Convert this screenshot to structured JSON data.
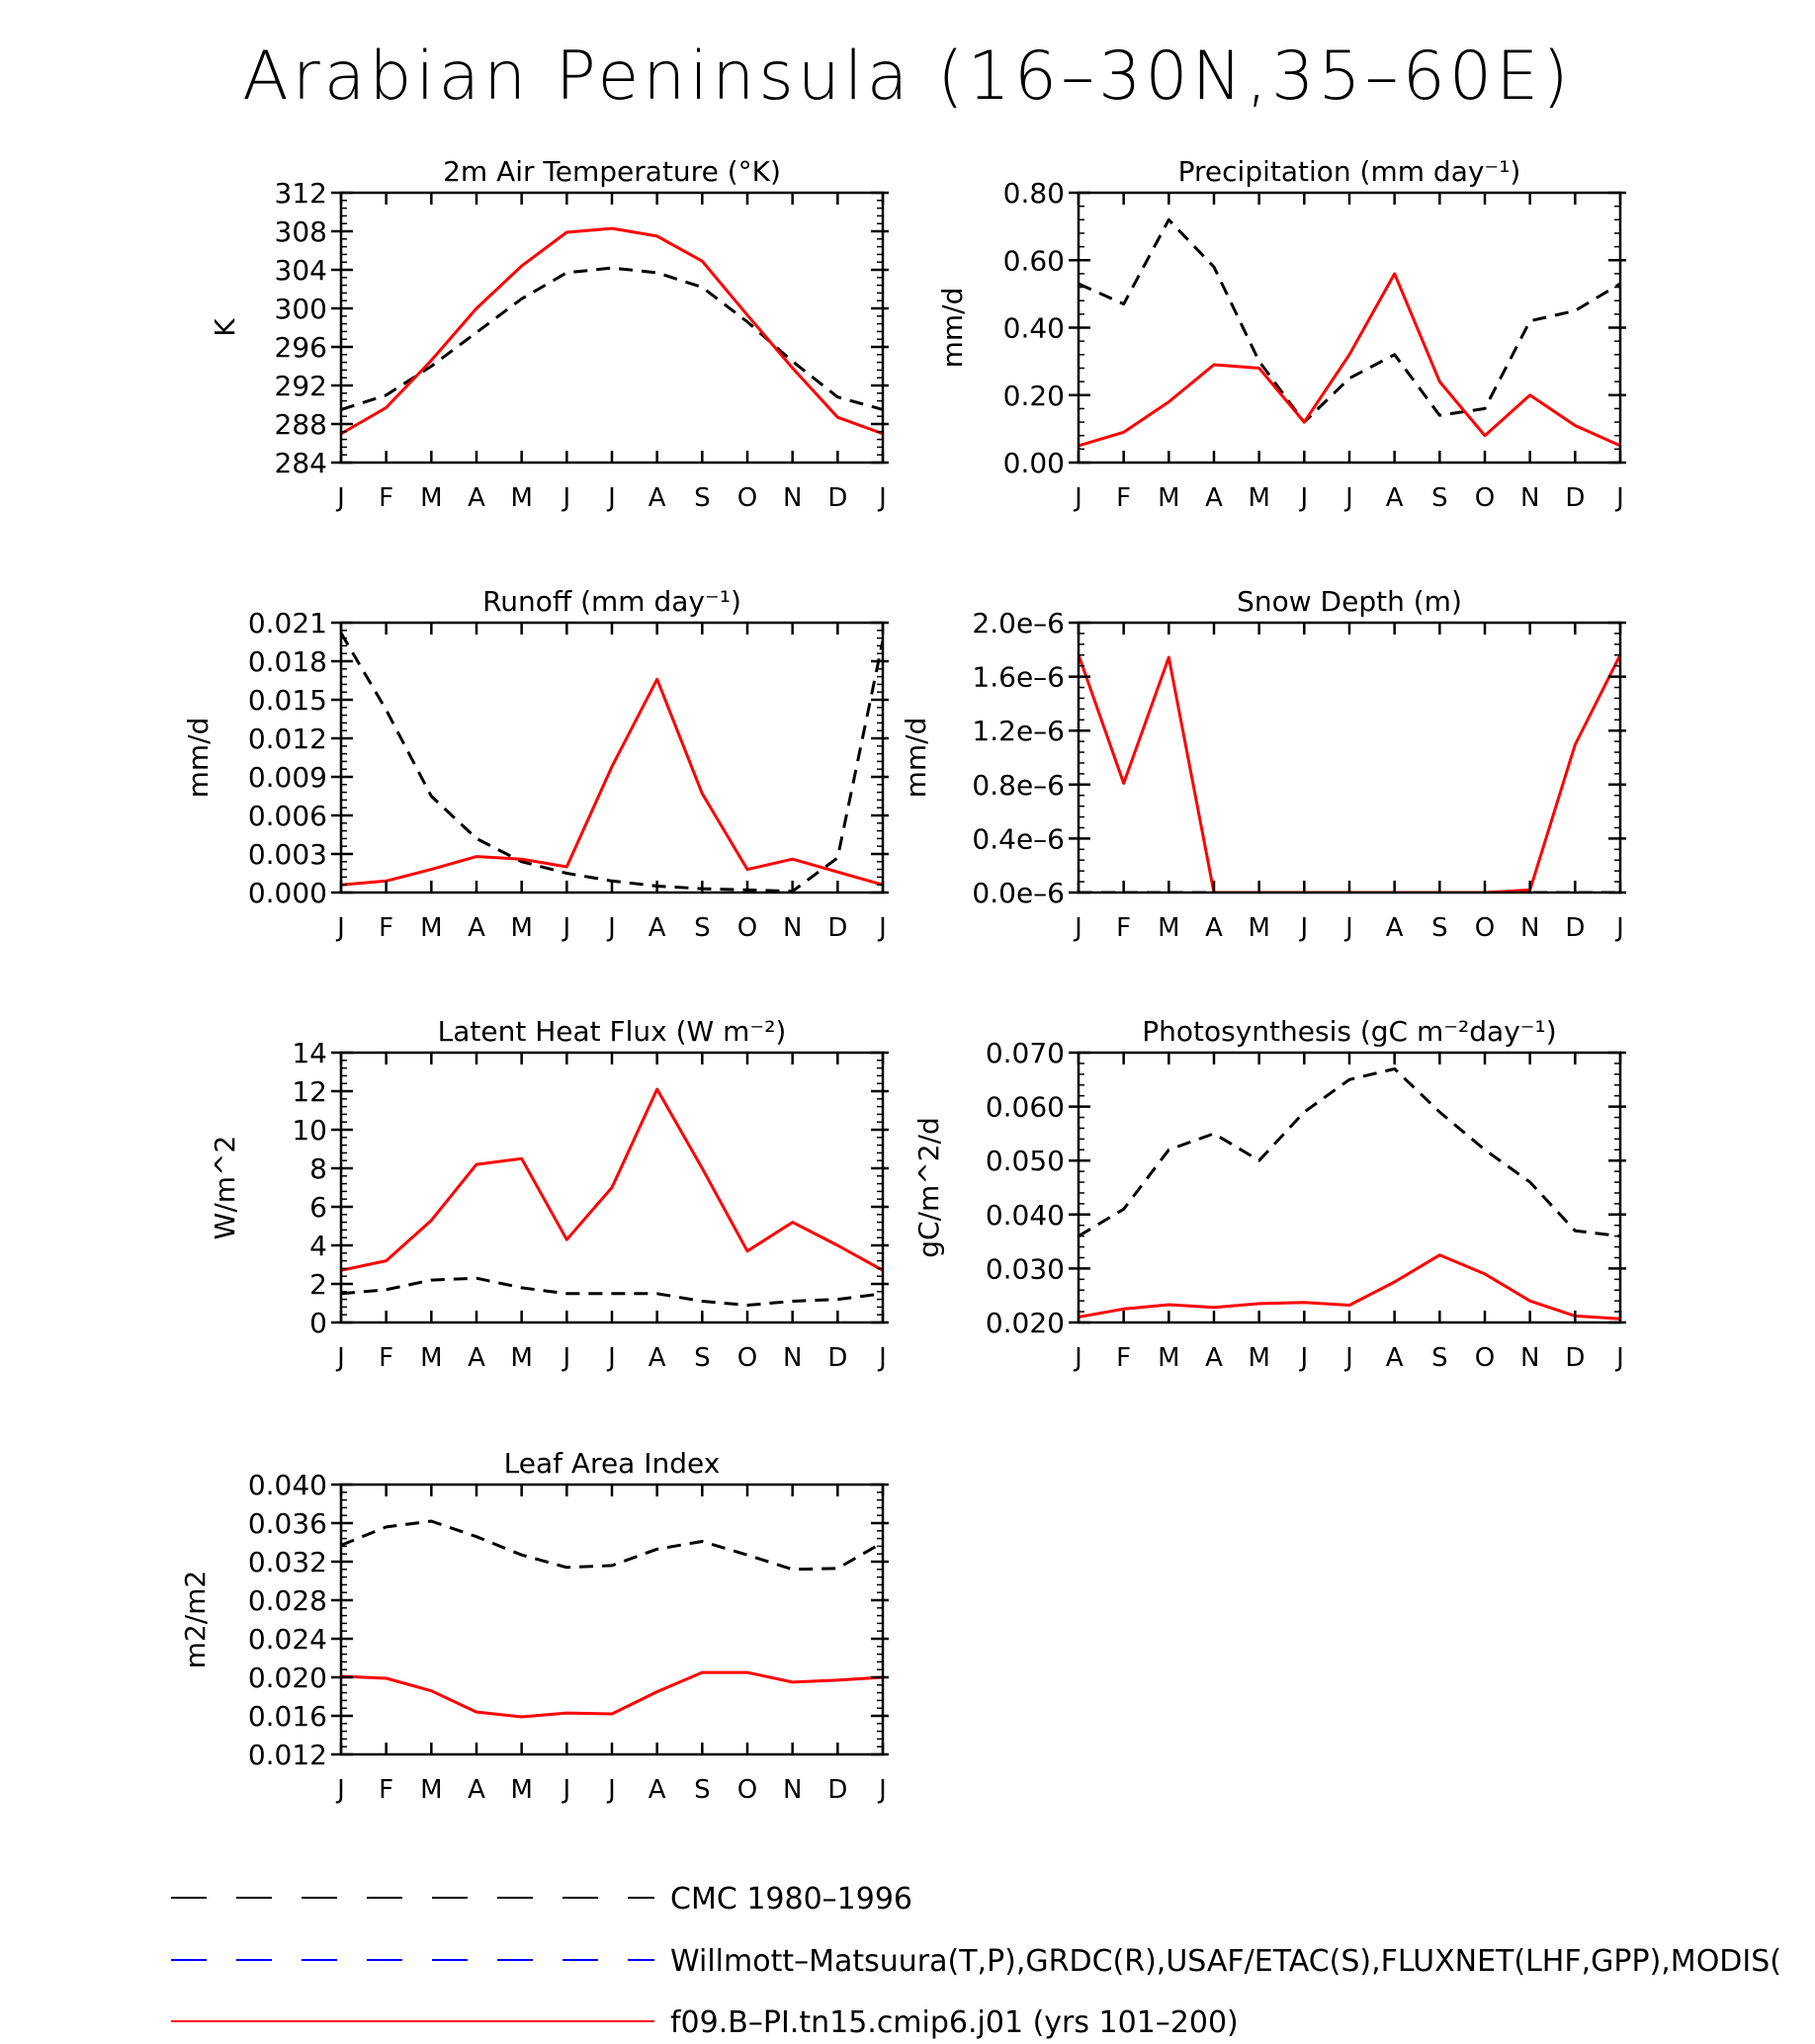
{
  "page_title": "Arabian Peninsula (16–30N,35–60E)",
  "legend": [
    {
      "label": "CMC 1980–1996",
      "color": "#000000",
      "style": "dashed"
    },
    {
      "label": "Willmott–Matsuura(T,P),GRDC(R),USAF/ETAC(S),FLUXNET(LHF,GPP),MODIS(",
      "color": "#0000ff",
      "style": "dashed"
    },
    {
      "label": "f09.B–PI.tn15.cmip6.j01 (yrs 101–200)",
      "color": "#ff0000",
      "style": "solid"
    }
  ],
  "chart_data": [
    {
      "type": "line",
      "title": "2m Air Temperature (°K)",
      "ylabel": "K",
      "xlabels": [
        "J",
        "F",
        "M",
        "A",
        "M",
        "J",
        "J",
        "A",
        "S",
        "O",
        "N",
        "D",
        "J"
      ],
      "ylim": [
        284,
        312
      ],
      "yticks": [
        "312",
        "308",
        "304",
        "300",
        "296",
        "292",
        "288",
        "284"
      ],
      "series": [
        {
          "color": "#000000",
          "dash": true,
          "values": [
            289.5,
            291,
            294,
            297.5,
            301,
            303.7,
            304.2,
            303.7,
            302.2,
            298.6,
            294.5,
            290.8,
            289.5
          ]
        },
        {
          "color": "#ff0000",
          "dash": false,
          "values": [
            287,
            289.7,
            294.6,
            300,
            304.4,
            307.9,
            308.3,
            307.5,
            304.9,
            299.3,
            293.8,
            288.7,
            287
          ]
        }
      ]
    },
    {
      "type": "line",
      "title": "Precipitation (mm day⁻¹)",
      "ylabel": "mm/d",
      "xlabels": [
        "J",
        "F",
        "M",
        "A",
        "M",
        "J",
        "J",
        "A",
        "S",
        "O",
        "N",
        "D",
        "J"
      ],
      "ylim": [
        0,
        0.8
      ],
      "yticks": [
        "0.80",
        "0.60",
        "0.40",
        "0.20",
        "0.00"
      ],
      "series": [
        {
          "color": "#000000",
          "dash": true,
          "values": [
            0.53,
            0.47,
            0.72,
            0.58,
            0.3,
            0.12,
            0.25,
            0.32,
            0.14,
            0.16,
            0.42,
            0.45,
            0.53
          ]
        },
        {
          "color": "#ff0000",
          "dash": false,
          "values": [
            0.05,
            0.09,
            0.18,
            0.29,
            0.28,
            0.12,
            0.32,
            0.56,
            0.24,
            0.08,
            0.2,
            0.11,
            0.05
          ]
        }
      ]
    },
    {
      "type": "line",
      "title": "Runoff (mm day⁻¹)",
      "ylabel": "mm/d",
      "xlabels": [
        "J",
        "F",
        "M",
        "A",
        "M",
        "J",
        "J",
        "A",
        "S",
        "O",
        "N",
        "D",
        "J"
      ],
      "ylim": [
        0,
        0.021
      ],
      "yticks": [
        "0.021",
        "0.018",
        "0.015",
        "0.012",
        "0.009",
        "0.006",
        "0.003",
        "0.000"
      ],
      "series": [
        {
          "color": "#000000",
          "dash": true,
          "values": [
            0.0202,
            0.0142,
            0.0075,
            0.0042,
            0.0024,
            0.0015,
            0.0009,
            0.0005,
            0.0003,
            0.0002,
            0.0001,
            0.0027,
            0.0196
          ]
        },
        {
          "color": "#ff0000",
          "dash": false,
          "values": [
            0.0006,
            0.0009,
            0.0018,
            0.0028,
            0.0026,
            0.002,
            0.0098,
            0.0166,
            0.0077,
            0.0018,
            0.0026,
            0.0016,
            0.0006
          ]
        }
      ]
    },
    {
      "type": "line",
      "title": "Snow Depth (m)",
      "ylabel": "mm/d",
      "xlabels": [
        "J",
        "F",
        "M",
        "A",
        "M",
        "J",
        "J",
        "A",
        "S",
        "O",
        "N",
        "D",
        "J"
      ],
      "ylim": [
        0,
        2.1e-06
      ],
      "yticks": [
        "2.0e–6",
        "1.6e–6",
        "1.2e–6",
        "0.8e–6",
        "0.4e–6",
        "0.0e–6"
      ],
      "series": [
        {
          "color": "#000000",
          "dash": true,
          "values": [
            0,
            0,
            0,
            0,
            0,
            0,
            0,
            0,
            0,
            0,
            0,
            0,
            0
          ]
        },
        {
          "color": "#ff0000",
          "dash": false,
          "values": [
            1.85e-06,
            8.5e-07,
            1.83e-06,
            0,
            0,
            0,
            0,
            0,
            0,
            0,
            2e-08,
            1.15e-06,
            1.85e-06
          ]
        }
      ]
    },
    {
      "type": "line",
      "title": "Latent Heat Flux (W m⁻²)",
      "ylabel": "W/m^2",
      "xlabels": [
        "J",
        "F",
        "M",
        "A",
        "M",
        "J",
        "J",
        "A",
        "S",
        "O",
        "N",
        "D",
        "J"
      ],
      "ylim": [
        0,
        14
      ],
      "yticks": [
        "14",
        "12",
        "10",
        "8",
        "6",
        "4",
        "2",
        "0"
      ],
      "series": [
        {
          "color": "#000000",
          "dash": true,
          "values": [
            1.5,
            1.7,
            2.2,
            2.3,
            1.8,
            1.5,
            1.5,
            1.5,
            1.1,
            0.9,
            1.1,
            1.2,
            1.5
          ]
        },
        {
          "color": "#ff0000",
          "dash": false,
          "values": [
            2.7,
            3.2,
            5.3,
            8.2,
            8.5,
            4.3,
            7,
            12.1,
            8,
            3.7,
            5.2,
            4,
            2.7
          ]
        }
      ]
    },
    {
      "type": "line",
      "title": "Photosynthesis (gC m⁻²day⁻¹)",
      "ylabel": "gC/m^2/d",
      "xlabels": [
        "J",
        "F",
        "M",
        "A",
        "M",
        "J",
        "J",
        "A",
        "S",
        "O",
        "N",
        "D",
        "J"
      ],
      "ylim": [
        0.02,
        0.07
      ],
      "yticks": [
        "0.070",
        "0.060",
        "0.050",
        "0.040",
        "0.030",
        "0.020"
      ],
      "series": [
        {
          "color": "#000000",
          "dash": true,
          "values": [
            0.036,
            0.041,
            0.052,
            0.055,
            0.05,
            0.059,
            0.065,
            0.067,
            0.059,
            0.052,
            0.046,
            0.037,
            0.036
          ]
        },
        {
          "color": "#ff0000",
          "dash": false,
          "values": [
            0.021,
            0.0225,
            0.0233,
            0.0228,
            0.0235,
            0.0237,
            0.0232,
            0.0275,
            0.0325,
            0.029,
            0.024,
            0.0212,
            0.0207
          ]
        }
      ]
    },
    {
      "type": "line",
      "title": "Leaf Area Index",
      "ylabel": "m2/m2",
      "xlabels": [
        "J",
        "F",
        "M",
        "A",
        "M",
        "J",
        "J",
        "A",
        "S",
        "O",
        "N",
        "D",
        "J"
      ],
      "ylim": [
        0.012,
        0.04
      ],
      "yticks": [
        "0.040",
        "0.036",
        "0.032",
        "0.028",
        "0.024",
        "0.020",
        "0.016",
        "0.012"
      ],
      "series": [
        {
          "color": "#000000",
          "dash": true,
          "values": [
            0.0337,
            0.0356,
            0.0362,
            0.0346,
            0.0327,
            0.0314,
            0.0316,
            0.0333,
            0.0341,
            0.0327,
            0.0312,
            0.0313,
            0.034
          ]
        },
        {
          "color": "#ff0000",
          "dash": false,
          "values": [
            0.0201,
            0.0199,
            0.0186,
            0.0164,
            0.0159,
            0.0163,
            0.0162,
            0.0185,
            0.0205,
            0.0205,
            0.0195,
            0.0197,
            0.02
          ]
        }
      ]
    }
  ]
}
